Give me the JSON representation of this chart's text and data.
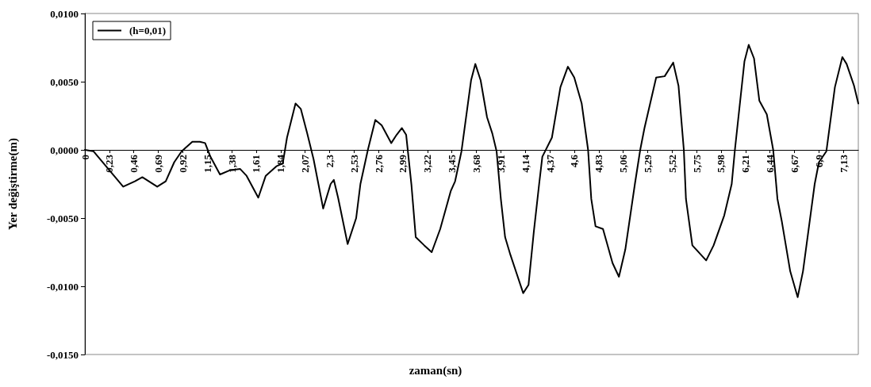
{
  "chart_data": {
    "type": "line",
    "xlabel": "zaman(sn)",
    "ylabel": "Yer değiştirme(m)",
    "x": [
      0,
      0.08,
      0.36,
      0.47,
      0.54,
      0.68,
      0.76,
      0.84,
      0.91,
      1.01,
      1.08,
      1.13,
      1.18,
      1.27,
      1.36,
      1.46,
      1.52,
      1.63,
      1.7,
      1.8,
      1.86,
      1.9,
      1.98,
      2.03,
      2.09,
      2.15,
      2.24,
      2.31,
      2.34,
      2.38,
      2.47,
      2.55,
      2.59,
      2.66,
      2.73,
      2.79,
      2.88,
      2.93,
      2.98,
      3.02,
      3.07,
      3.11,
      3.19,
      3.26,
      3.34,
      3.44,
      3.48,
      3.54,
      3.63,
      3.67,
      3.72,
      3.78,
      3.83,
      3.87,
      3.91,
      3.95,
      4.0,
      4.06,
      4.12,
      4.17,
      4.22,
      4.27,
      4.3,
      4.39,
      4.47,
      4.54,
      4.6,
      4.67,
      4.73,
      4.76,
      4.8,
      4.87,
      4.96,
      5.02,
      5.08,
      5.17,
      5.22,
      5.26,
      5.37,
      5.45,
      5.53,
      5.58,
      5.63,
      5.65,
      5.71,
      5.84,
      5.91,
      6.01,
      6.08,
      6.11,
      6.2,
      6.24,
      6.29,
      6.34,
      6.41,
      6.47,
      6.51,
      6.55,
      6.63,
      6.7,
      6.75,
      6.86,
      6.9,
      6.97,
      7.05,
      7.12,
      7.16,
      7.23,
      7.27
    ],
    "series": [
      {
        "name": "(h=0,01)",
        "color": "#000000",
        "values": [
          0,
          -0.0001,
          -0.0027,
          -0.0023,
          -0.002,
          -0.0027,
          -0.0023,
          -0.0009,
          -0.0001,
          0.0006,
          0.0006,
          0.0005,
          -0.0005,
          -0.0018,
          -0.0015,
          -0.0014,
          -0.0019,
          -0.0035,
          -0.0019,
          -0.0012,
          -0.001,
          0.0009,
          0.0034,
          0.003,
          0.0012,
          -0.0007,
          -0.0043,
          -0.0025,
          -0.0022,
          -0.0035,
          -0.0069,
          -0.005,
          -0.0025,
          0,
          0.0022,
          0.0018,
          0.0005,
          0.0011,
          0.0016,
          0.0011,
          -0.0026,
          -0.0064,
          -0.007,
          -0.0075,
          -0.0058,
          -0.003,
          -0.0023,
          -0.0001,
          0.0051,
          0.0063,
          0.0051,
          0.0024,
          0.0012,
          -0.0001,
          -0.0036,
          -0.0064,
          -0.0077,
          -0.0091,
          -0.0105,
          -0.0099,
          -0.006,
          -0.0025,
          -0.0005,
          0.0009,
          0.0046,
          0.0061,
          0.0053,
          0.0034,
          0,
          -0.0036,
          -0.0056,
          -0.0058,
          -0.0083,
          -0.0093,
          -0.0073,
          -0.0025,
          0,
          0.0016,
          0.0053,
          0.0054,
          0.0064,
          0.0047,
          0,
          -0.0036,
          -0.007,
          -0.0081,
          -0.007,
          -0.0048,
          -0.0025,
          0,
          0.0065,
          0.0077,
          0.0067,
          0.0036,
          0.0026,
          0,
          -0.0036,
          -0.0052,
          -0.0089,
          -0.0108,
          -0.0089,
          -0.0025,
          -0.0009,
          -0.0001,
          0.0046,
          0.0068,
          0.0063,
          0.0047,
          0.0034
        ]
      }
    ],
    "xlim": [
      0,
      7.27
    ],
    "xticks": [
      0,
      {
        "value": 0.23,
        "label": "0,23"
      },
      {
        "value": 0.46,
        "label": "0,46"
      },
      {
        "value": 0.69,
        "label": "0,69"
      },
      {
        "value": 0.92,
        "label": "0,92"
      },
      {
        "value": 1.15,
        "label": "1,15"
      },
      {
        "value": 1.38,
        "label": "1,38"
      },
      {
        "value": 1.61,
        "label": "1,61"
      },
      {
        "value": 1.84,
        "label": "1,84"
      },
      {
        "value": 2.07,
        "label": "2,07"
      },
      {
        "value": 2.3,
        "label": "2,3"
      },
      {
        "value": 2.53,
        "label": "2,53"
      },
      {
        "value": 2.76,
        "label": "2,76"
      },
      {
        "value": 2.99,
        "label": "2,99"
      },
      {
        "value": 3.22,
        "label": "3,22"
      },
      {
        "value": 3.45,
        "label": "3,45"
      },
      {
        "value": 3.68,
        "label": "3,68"
      },
      {
        "value": 3.91,
        "label": "3,91"
      },
      {
        "value": 4.14,
        "label": "4,14"
      },
      {
        "value": 4.37,
        "label": "4,37"
      },
      {
        "value": 4.6,
        "label": "4,6"
      },
      {
        "value": 4.83,
        "label": "4,83"
      },
      {
        "value": 5.06,
        "label": "5,06"
      },
      {
        "value": 5.29,
        "label": "5,29"
      },
      {
        "value": 5.52,
        "label": "5,52"
      },
      {
        "value": 5.75,
        "label": "5,75"
      },
      {
        "value": 5.98,
        "label": "5,98"
      },
      {
        "value": 6.21,
        "label": "6,21"
      },
      {
        "value": 6.44,
        "label": "6,44"
      },
      {
        "value": 6.67,
        "label": "6,67"
      },
      {
        "value": 6.9,
        "label": "6,9"
      },
      {
        "value": 7.13,
        "label": "7,13"
      }
    ],
    "ylim": [
      -0.015,
      0.01
    ],
    "yticks": [
      {
        "value": -0.015,
        "label": "-0,0150"
      },
      {
        "value": -0.01,
        "label": "-0,0100"
      },
      {
        "value": -0.005,
        "label": "-0,0050"
      },
      {
        "value": 0,
        "label": "0,0000"
      },
      {
        "value": 0.005,
        "label": "0,0050"
      },
      {
        "value": 0.01,
        "label": "0,0100"
      }
    ],
    "legend": "top left",
    "marker": "none",
    "line_style": "solid"
  }
}
